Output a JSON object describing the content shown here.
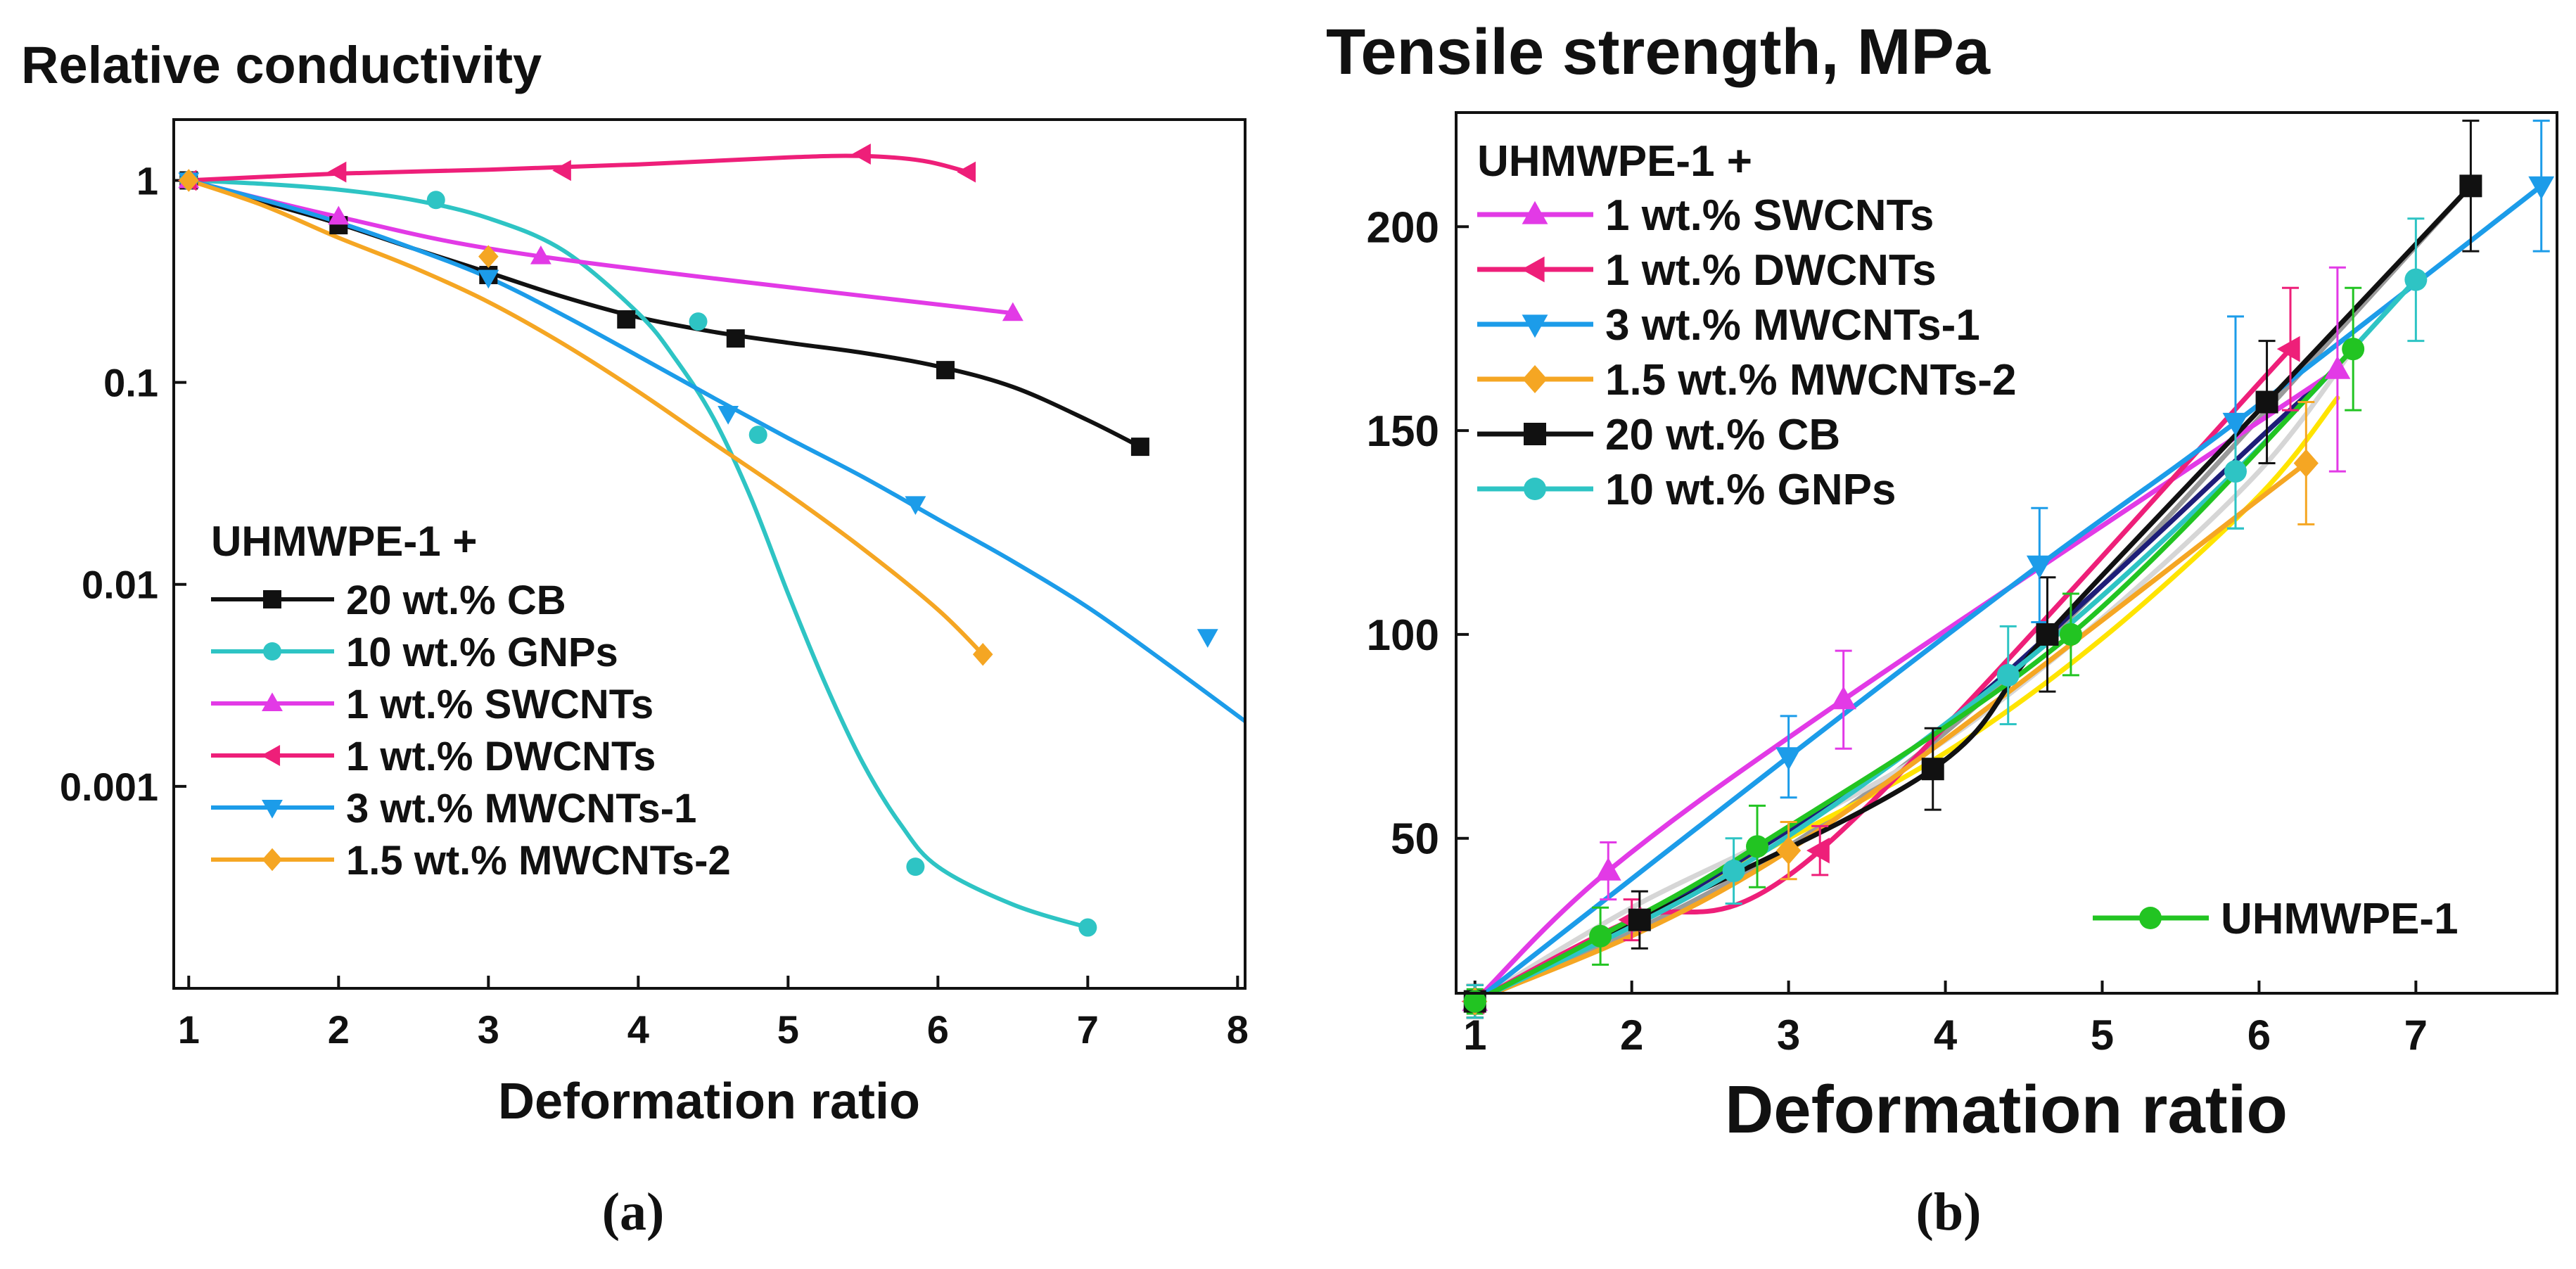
{
  "captions": [
    "(a)",
    "(b)"
  ],
  "chart_data": [
    {
      "type": "line",
      "title": "Relative conductivity",
      "xlabel": "Deformation ratio",
      "ylabel": "",
      "yscale": "log",
      "xlim": [
        0.9,
        8.05
      ],
      "ylim": [
        0.0001,
        2
      ],
      "xticks": [
        "1",
        "2",
        "3",
        "4",
        "5",
        "6",
        "7",
        "8"
      ],
      "yticks": [
        "1",
        "0.1",
        "0.01",
        "0.001"
      ],
      "legend_title": "UHMWPE-1 +",
      "legend_position": "lower-left",
      "series": [
        {
          "name": "20 wt.% CB",
          "color": "#111111",
          "marker": "square",
          "x": [
            1,
            2,
            3,
            3.92,
            4.65,
            6.05,
            7.35
          ],
          "y": [
            1,
            0.6,
            0.34,
            0.205,
            0.165,
            0.115,
            0.048
          ],
          "fit_x": [
            1,
            1.5,
            2,
            2.5,
            3,
            3.5,
            4,
            4.5,
            5,
            5.5,
            6,
            6.5,
            7,
            7.35
          ],
          "fit_y": [
            1,
            0.78,
            0.61,
            0.46,
            0.35,
            0.265,
            0.21,
            0.178,
            0.157,
            0.14,
            0.12,
            0.095,
            0.065,
            0.048
          ]
        },
        {
          "name": "10 wt.% GNPs",
          "color": "#2ec4c4",
          "marker": "circle",
          "x": [
            1,
            2.65,
            4.4,
            4.8,
            5.85,
            7
          ],
          "y": [
            1,
            0.8,
            0.2,
            0.055,
            0.0004,
            0.0002
          ],
          "fit_x": [
            1,
            1.5,
            2,
            2.5,
            3,
            3.5,
            4,
            4.25,
            4.5,
            4.75,
            5,
            5.25,
            5.5,
            5.75,
            6,
            6.5,
            7
          ],
          "fit_y": [
            1,
            0.96,
            0.9,
            0.8,
            0.65,
            0.45,
            0.22,
            0.13,
            0.067,
            0.027,
            0.009,
            0.0032,
            0.0013,
            0.00065,
            0.0004,
            0.00026,
            0.0002
          ]
        },
        {
          "name": "1 wt.% SWCNTs",
          "color": "#e23ae6",
          "marker": "triangle-up",
          "x": [
            1,
            2,
            3.35,
            6.5
          ],
          "y": [
            1,
            0.66,
            0.42,
            0.22
          ],
          "fit_x": [
            1,
            2,
            3.35,
            6.5
          ],
          "fit_y": [
            1,
            0.66,
            0.42,
            0.22
          ]
        },
        {
          "name": "1 wt.% DWCNTs",
          "color": "#ee1f79",
          "marker": "triangle-left",
          "x": [
            1,
            2,
            3.5,
            5.5,
            6.2
          ],
          "y": [
            1,
            1.1,
            1.12,
            1.35,
            1.1
          ],
          "fit_x": [
            1,
            2,
            3,
            4,
            5,
            5.5,
            5.9,
            6.2
          ],
          "fit_y": [
            1,
            1.08,
            1.13,
            1.2,
            1.3,
            1.32,
            1.25,
            1.1
          ]
        },
        {
          "name": "3 wt.% MWCNTs-1",
          "color": "#1c9ce9",
          "marker": "triangle-down",
          "x": [
            1,
            3,
            4.6,
            5.85,
            7.8
          ],
          "y": [
            1,
            0.33,
            0.07,
            0.025,
            0.0055
          ],
          "fit_x": [
            1,
            1.5,
            2,
            2.5,
            3,
            3.5,
            4,
            4.5,
            5,
            5.5,
            6,
            6.5,
            7,
            7.5,
            8.05
          ],
          "fit_y": [
            1,
            0.8,
            0.62,
            0.46,
            0.33,
            0.215,
            0.135,
            0.084,
            0.053,
            0.034,
            0.021,
            0.013,
            0.0077,
            0.0042,
            0.0021
          ]
        },
        {
          "name": "1.5 wt.% MWCNTs-2",
          "color": "#f5a623",
          "marker": "diamond",
          "x": [
            1,
            3,
            6.3
          ],
          "y": [
            1,
            0.42,
            0.0045
          ],
          "fit_x": [
            1,
            1.5,
            2,
            2.5,
            3,
            3.5,
            4,
            4.5,
            5,
            5.5,
            6,
            6.3
          ],
          "fit_y": [
            1,
            0.75,
            0.52,
            0.37,
            0.25,
            0.155,
            0.09,
            0.05,
            0.028,
            0.015,
            0.0075,
            0.0045
          ]
        }
      ]
    },
    {
      "type": "line",
      "title": "Tensile strength, MPa",
      "xlabel": "Deformation ratio",
      "ylabel": "",
      "xlim": [
        0.88,
        7.9
      ],
      "ylim": [
        12,
        228
      ],
      "xticks": [
        "1",
        "2",
        "3",
        "4",
        "5",
        "6",
        "7"
      ],
      "yticks": [
        "50",
        "100",
        "150",
        "200"
      ],
      "legend_title": "UHMWPE-1 +",
      "legend_position": "upper-left",
      "series": [
        {
          "name": "1 wt.% SWCNTs",
          "color": "#e23ae6",
          "marker": "triangle-up",
          "x": [
            1,
            1.85,
            3.35,
            6.5
          ],
          "y": [
            10,
            42,
            84,
            165
          ],
          "err": [
            4,
            7,
            12,
            25
          ]
        },
        {
          "name": "1 wt.% DWCNTs",
          "color": "#ee1f79",
          "marker": "triangle-left",
          "x": [
            1,
            2,
            3.2,
            6.2
          ],
          "y": [
            10,
            30,
            47,
            170
          ],
          "err": [
            4,
            5,
            6,
            15
          ]
        },
        {
          "name": "3 wt.% MWCNTs-1",
          "color": "#1c9ce9",
          "marker": "triangle-down",
          "x": [
            1,
            3,
            4.6,
            5.85,
            7.8
          ],
          "y": [
            10,
            70,
            117,
            152,
            210
          ],
          "err": [
            4,
            10,
            14,
            26,
            16
          ]
        },
        {
          "name": "1.5 wt.% MWCNTs-2",
          "color": "#f5a623",
          "marker": "diamond",
          "x": [
            1,
            3,
            6.3
          ],
          "y": [
            10,
            47,
            142
          ],
          "err": [
            4,
            7,
            15
          ]
        },
        {
          "name": "20 wt.% CB",
          "color": "#111111",
          "marker": "square",
          "x": [
            1,
            2.05,
            3.92,
            4.65,
            6.05,
            7.35
          ],
          "y": [
            10,
            30,
            67,
            100,
            157,
            210
          ],
          "err": [
            4,
            7,
            10,
            14,
            15,
            16
          ]
        },
        {
          "name": "10 wt.% GNPs",
          "color": "#2ec4c4",
          "marker": "circle",
          "x": [
            1,
            2.65,
            4.4,
            5.85,
            7
          ],
          "y": [
            10,
            42,
            90,
            140,
            187
          ],
          "err": [
            4,
            8,
            12,
            14,
            15
          ]
        },
        {
          "name": "UHMWPE-1",
          "color": "#22c422",
          "marker": "circle",
          "x": [
            1,
            1.8,
            2.8,
            4.8,
            6.6
          ],
          "y": [
            10,
            26,
            48,
            100,
            170
          ],
          "err": [
            3,
            7,
            10,
            10,
            15
          ]
        }
      ],
      "extra_curves": [
        {
          "color": "#9a9a9a",
          "x": [
            1,
            2,
            3,
            4,
            5,
            6,
            7.35
          ],
          "y": [
            10,
            27,
            48,
            76,
            112,
            153,
            210
          ]
        },
        {
          "color": "#d6d6d6",
          "x": [
            1,
            2,
            3,
            4,
            5,
            6,
            6.6
          ],
          "y": [
            10,
            33,
            52,
            74,
            104,
            140,
            170
          ]
        },
        {
          "color": "#ffe400",
          "x": [
            1,
            2,
            3,
            4,
            5,
            6,
            6.5
          ],
          "y": [
            10,
            30,
            50,
            71,
            99,
            134,
            158
          ]
        },
        {
          "color": "#1e1e78",
          "x": [
            1,
            2,
            3,
            4,
            5,
            6,
            6.4
          ],
          "y": [
            10,
            29,
            52,
            78,
            112,
            148,
            162
          ]
        }
      ]
    }
  ]
}
